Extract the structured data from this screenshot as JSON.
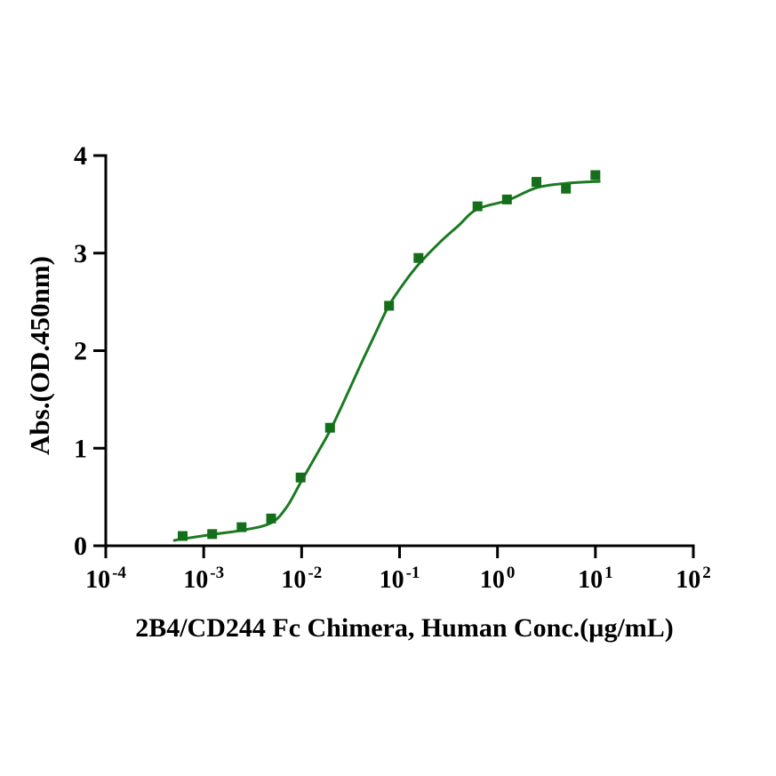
{
  "chart_data": {
    "type": "line",
    "subtype": "elisa-dose-response-scatter-with-fit",
    "title": "",
    "xlabel": "2B4/CD244 Fc Chimera, Human Conc.(µg/mL)",
    "ylabel": "Abs.(OD.450nm)",
    "x_scale": "log10",
    "xlim_log10": [
      -4,
      2
    ],
    "ylim": [
      0,
      4
    ],
    "grid": false,
    "legend_position": "none",
    "axis_color": "#000000",
    "x_tick_base": "10",
    "x_tick_exponents": [
      -4,
      -3,
      -2,
      -1,
      0,
      1,
      2
    ],
    "y_ticks": [
      0,
      1,
      2,
      3,
      4
    ],
    "series": [
      {
        "name": "2B4/CD244 Fc Chimera, Human",
        "marker": "filled-square",
        "marker_color": "#156e1a",
        "line_color": "#1b7a21",
        "points": [
          {
            "x": 0.00061,
            "y": 0.1
          },
          {
            "x": 0.00122,
            "y": 0.12
          },
          {
            "x": 0.00244,
            "y": 0.19
          },
          {
            "x": 0.00488,
            "y": 0.28
          },
          {
            "x": 0.00977,
            "y": 0.7
          },
          {
            "x": 0.0195,
            "y": 1.21
          },
          {
            "x": 0.0781,
            "y": 2.46
          },
          {
            "x": 0.156,
            "y": 2.95
          },
          {
            "x": 0.625,
            "y": 3.48
          },
          {
            "x": 1.25,
            "y": 3.55
          },
          {
            "x": 2.5,
            "y": 3.73
          },
          {
            "x": 5,
            "y": 3.66
          },
          {
            "x": 10,
            "y": 3.8
          }
        ],
        "fit_curve_log10x": [
          -3.3,
          -3.22,
          -2.92,
          -2.6,
          -2.31,
          -2.15,
          -2.01,
          -1.85,
          -1.7,
          -1.55,
          -1.4,
          -1.25,
          -1.11,
          -0.95,
          -0.8,
          -0.6,
          -0.4,
          -0.21,
          0.1,
          0.4,
          0.7,
          1.04
        ],
        "fit_curve_od": [
          0.055,
          0.07,
          0.115,
          0.16,
          0.235,
          0.4,
          0.65,
          0.93,
          1.2,
          1.52,
          1.85,
          2.17,
          2.46,
          2.7,
          2.89,
          3.1,
          3.28,
          3.45,
          3.54,
          3.67,
          3.715,
          3.735
        ]
      }
    ]
  }
}
